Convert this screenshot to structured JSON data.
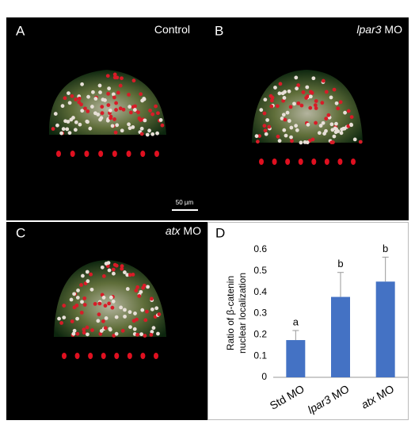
{
  "panels": [
    {
      "label": "A",
      "caption": [
        "Control"
      ],
      "scale_bar": "50 µm"
    },
    {
      "label": "B",
      "caption": [
        "lpar3",
        " MO"
      ]
    },
    {
      "label": "C",
      "caption": [
        "atx",
        " MO"
      ]
    },
    {
      "label": "D"
    }
  ],
  "chart_data": {
    "type": "bar",
    "y_label": [
      "Ratio of β-catenin",
      "nuclear localization"
    ],
    "categories": [
      [
        "Std MO"
      ],
      [
        "lpar3",
        " MO"
      ],
      [
        "atx",
        " MO"
      ]
    ],
    "values": [
      0.175,
      0.378,
      0.45
    ],
    "errors": [
      0.045,
      0.115,
      0.115
    ],
    "annotations": [
      "a",
      "b",
      "b"
    ],
    "color": "#4472c4",
    "ylim": [
      0,
      0.6
    ],
    "yticks": [
      0,
      0.1,
      0.2,
      0.3,
      0.4,
      0.5,
      0.6
    ]
  }
}
